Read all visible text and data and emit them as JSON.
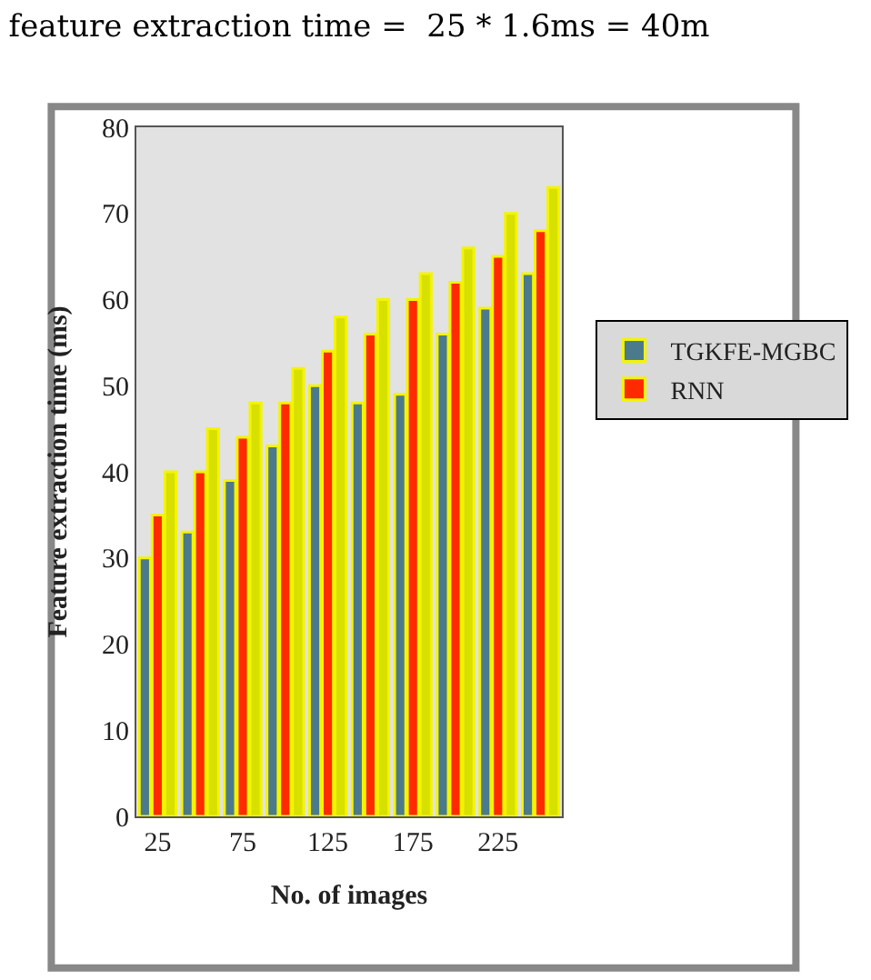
{
  "chart_data": {
    "type": "bar",
    "title": "feature extraction time =  25 * 1.6ms = 40m",
    "xlabel": "No. of images",
    "ylabel": "Feature extraction time (ms)",
    "categories": [
      "25",
      null,
      "75",
      null,
      "125",
      null,
      "175",
      null,
      "225",
      null
    ],
    "series": [
      {
        "name": "TGKFE-MGBC",
        "color": "#4a7a8c",
        "values": [
          30,
          33,
          39,
          43,
          50,
          48,
          49,
          56,
          59,
          63
        ]
      },
      {
        "name": "RNN",
        "color": "#ff2a00",
        "values": [
          35,
          40,
          44,
          48,
          54,
          56,
          60,
          62,
          65,
          68
        ]
      },
      {
        "color": "#d8e000",
        "values": [
          40,
          45,
          48,
          52,
          58,
          60,
          63,
          66,
          70,
          73
        ]
      }
    ],
    "ylim": [
      0,
      80
    ],
    "yticks": [
      0,
      10,
      20,
      30,
      40,
      50,
      60,
      70,
      80
    ],
    "grid": false,
    "legend": "right"
  }
}
